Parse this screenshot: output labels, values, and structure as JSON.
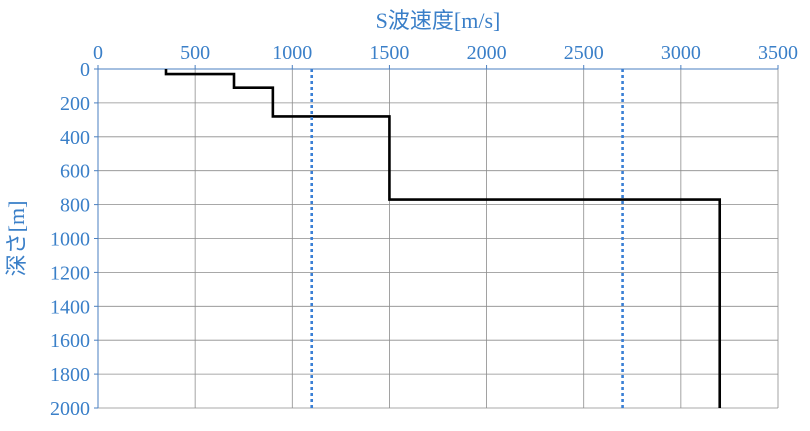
{
  "chart_data": {
    "type": "line",
    "title": "",
    "xlabel": "S波速度[m/s]",
    "ylabel": "深さ[m]",
    "xlim": [
      0,
      3500
    ],
    "ylim": [
      0,
      2000
    ],
    "x_axis_position": "top",
    "y_axis_inverted": true,
    "x_ticks": [
      0,
      500,
      1000,
      1500,
      2000,
      2500,
      3000,
      3500
    ],
    "y_ticks": [
      0,
      200,
      400,
      600,
      800,
      1000,
      1200,
      1400,
      1600,
      1800,
      2000
    ],
    "grid": true,
    "series": [
      {
        "style": "solid",
        "color": "#000000",
        "x": [
          350,
          350,
          700,
          700,
          900,
          900,
          1500,
          1500,
          3200,
          3200
        ],
        "y": [
          0,
          30,
          30,
          110,
          110,
          280,
          280,
          770,
          770,
          2000
        ]
      },
      {
        "style": "dotted",
        "color": "#3a7fd5",
        "x": [
          1100,
          1100
        ],
        "y": [
          0,
          2000
        ]
      },
      {
        "style": "dotted",
        "color": "#3a7fd5",
        "x": [
          2700,
          2700
        ],
        "y": [
          0,
          2000
        ]
      }
    ]
  },
  "colors": {
    "axis_text": "#3a7fc8",
    "grid": "#8c8c8c",
    "axis_line": "#4a7fc0"
  }
}
